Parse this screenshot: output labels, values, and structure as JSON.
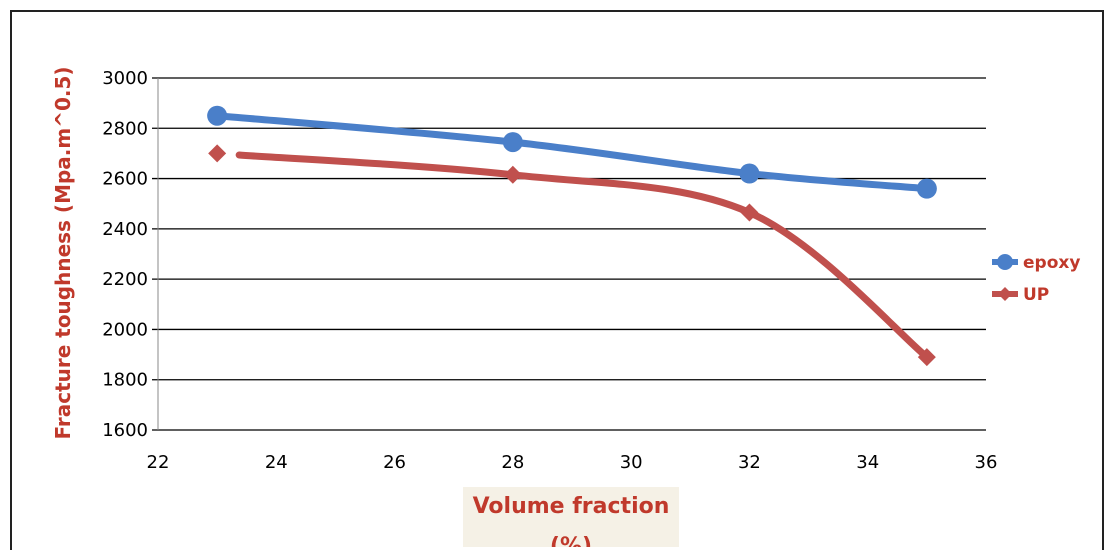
{
  "chart_data": {
    "type": "line",
    "x": [
      23,
      28,
      32,
      35
    ],
    "series": [
      {
        "name": "epoxy",
        "values": [
          2850,
          2745,
          2620,
          2560
        ],
        "color": "#4a7fc9",
        "marker": "circle"
      },
      {
        "name": "UP",
        "values": [
          2700,
          2615,
          2465,
          1890
        ],
        "color": "#c0504d",
        "marker": "diamond"
      }
    ],
    "xlabel_lines": [
      "Volume fraction",
      "(%)"
    ],
    "ylabel": "Fracture toughness (Mpa.m^0.5)",
    "xlim": [
      22,
      36
    ],
    "ylim": [
      1600,
      3000
    ],
    "x_ticks": [
      "22",
      "24",
      "26",
      "28",
      "30",
      "32",
      "34",
      "36"
    ],
    "y_ticks": [
      "1600",
      "1800",
      "2000",
      "2200",
      "2400",
      "2600",
      "2800",
      "3000"
    ],
    "grid": "horizontal",
    "legend_position": "right"
  }
}
